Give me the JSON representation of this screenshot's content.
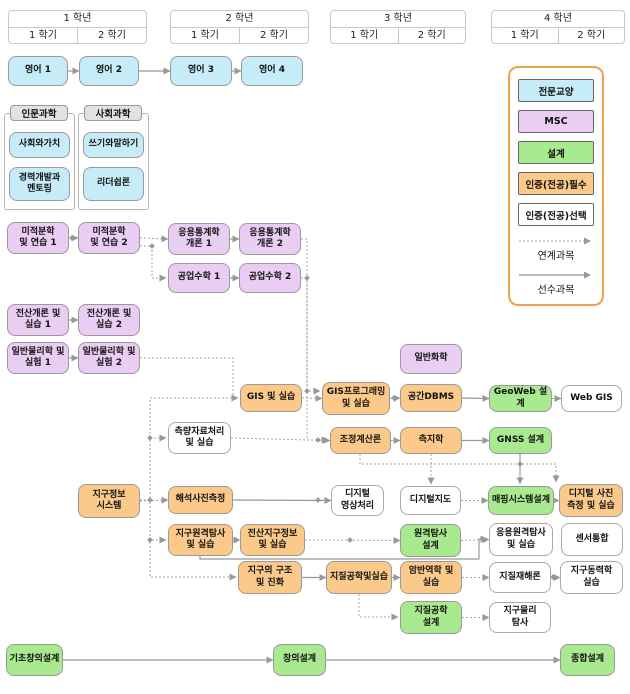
{
  "header": {
    "years": [
      {
        "label": "1 학년",
        "semesters": [
          "1 학기",
          "2 학기"
        ]
      },
      {
        "label": "2 학년",
        "semesters": [
          "1 학기",
          "2 학기"
        ]
      },
      {
        "label": "3 학년",
        "semesters": [
          "1 학기",
          "2 학기"
        ]
      },
      {
        "label": "4 학년",
        "semesters": [
          "1 학기",
          "2 학기"
        ]
      }
    ]
  },
  "groups": [
    {
      "label": "인문과학"
    },
    {
      "label": "사회과학"
    }
  ],
  "legend": {
    "items": [
      {
        "label": "전문교양",
        "type": "liberal"
      },
      {
        "label": "MSC",
        "type": "msc"
      },
      {
        "label": "설계",
        "type": "design"
      },
      {
        "label": "인증(전공)필수",
        "type": "required"
      },
      {
        "label": "인증(전공)선택",
        "type": "elective"
      }
    ],
    "linked_label": "연계과목",
    "prereq_label": "선수과목"
  },
  "colors": {
    "liberal": "#c6edf7",
    "msc": "#eacdf2",
    "design": "#a9e98f",
    "required": "#fbca8b",
    "elective": "#ffffff",
    "legend_border": "#f2a24c",
    "arrow": "#999999"
  },
  "nodes": [
    {
      "id": "eng1",
      "label": "영어 1",
      "type": "liberal"
    },
    {
      "id": "eng2",
      "label": "영어 2",
      "type": "liberal"
    },
    {
      "id": "eng3",
      "label": "영어 3",
      "type": "liberal"
    },
    {
      "id": "eng4",
      "label": "영어 4",
      "type": "liberal"
    },
    {
      "id": "hum1",
      "label": "사회와가치",
      "type": "liberal"
    },
    {
      "id": "hum2",
      "label": "경력개발과\n멘토링",
      "type": "liberal"
    },
    {
      "id": "soc1",
      "label": "쓰기와말하기",
      "type": "liberal"
    },
    {
      "id": "soc2",
      "label": "리더쉽론",
      "type": "liberal"
    },
    {
      "id": "calc1",
      "label": "미적분학\n및 연습 1",
      "type": "msc"
    },
    {
      "id": "calc2",
      "label": "미적분학\n및 연습 2",
      "type": "msc"
    },
    {
      "id": "stat1",
      "label": "응용통계학\n개론 1",
      "type": "msc"
    },
    {
      "id": "stat2",
      "label": "응용통계학\n개론 2",
      "type": "msc"
    },
    {
      "id": "math1",
      "label": "공업수학 1",
      "type": "msc"
    },
    {
      "id": "math2",
      "label": "공업수학 2",
      "type": "msc"
    },
    {
      "id": "comp1",
      "label": "전산개론 및\n실습 1",
      "type": "msc"
    },
    {
      "id": "comp2",
      "label": "전산개론 및\n실습 2",
      "type": "msc"
    },
    {
      "id": "phys1",
      "label": "일반물리학 및\n실험 1",
      "type": "msc"
    },
    {
      "id": "phys2",
      "label": "일반물리학 및\n실험 2",
      "type": "msc"
    },
    {
      "id": "chem",
      "label": "일반화학",
      "type": "msc"
    },
    {
      "id": "gis",
      "label": "GIS 및 실습",
      "type": "required"
    },
    {
      "id": "gisprog",
      "label": "GIS프로그래밍\n및 실습",
      "type": "required"
    },
    {
      "id": "dbms",
      "label": "공간DBMS",
      "type": "required"
    },
    {
      "id": "geoweb",
      "label": "GeoWeb 설계",
      "type": "design"
    },
    {
      "id": "webgis",
      "label": "Web GIS",
      "type": "elective"
    },
    {
      "id": "survey",
      "label": "측량자료처리\n및 실습",
      "type": "elective"
    },
    {
      "id": "adjust",
      "label": "조정계산론",
      "type": "required"
    },
    {
      "id": "geodesy",
      "label": "측지학",
      "type": "required"
    },
    {
      "id": "gnss",
      "label": "GNSS 설계",
      "type": "design"
    },
    {
      "id": "geoinfo",
      "label": "지구정보\n시스템",
      "type": "required"
    },
    {
      "id": "photo",
      "label": "해석사진측정",
      "type": "required"
    },
    {
      "id": "dimg",
      "label": "디지털\n영상처리",
      "type": "elective"
    },
    {
      "id": "dmap",
      "label": "디지털지도",
      "type": "elective"
    },
    {
      "id": "mapsys",
      "label": "매핑시스템설계",
      "type": "design"
    },
    {
      "id": "dphoto",
      "label": "디지털 사진\n측정 및 실습",
      "type": "required"
    },
    {
      "id": "ers",
      "label": "지구원격탐사\n및 실습",
      "type": "required"
    },
    {
      "id": "cgi",
      "label": "전산지구정보\n및 실습",
      "type": "required"
    },
    {
      "id": "rsd",
      "label": "원격탐사\n설계",
      "type": "design"
    },
    {
      "id": "aers",
      "label": "응용원격탐사\n및 실습",
      "type": "elective"
    },
    {
      "id": "sensor",
      "label": "센서통합",
      "type": "elective"
    },
    {
      "id": "earth",
      "label": "지구의 구조\n및 진화",
      "type": "required"
    },
    {
      "id": "geoeng",
      "label": "지질공학및실습",
      "type": "required"
    },
    {
      "id": "rock",
      "label": "암반역학 및\n실습",
      "type": "required"
    },
    {
      "id": "hazard",
      "label": "지질재해론",
      "type": "elective"
    },
    {
      "id": "geodyn",
      "label": "지구동력학\n실습",
      "type": "elective"
    },
    {
      "id": "gdesign",
      "label": "지질공학\n설계",
      "type": "design"
    },
    {
      "id": "geophys",
      "label": "지구물리\n탐사",
      "type": "elective"
    },
    {
      "id": "basic",
      "label": "기초창의설계",
      "type": "design"
    },
    {
      "id": "creative",
      "label": "창의설계",
      "type": "design"
    },
    {
      "id": "final",
      "label": "종합설계",
      "type": "design"
    }
  ],
  "edges": [
    {
      "from": "eng1",
      "to": "eng2",
      "type": "prereq"
    },
    {
      "from": "eng2",
      "to": "eng3",
      "type": "prereq"
    },
    {
      "from": "eng3",
      "to": "eng4",
      "type": "prereq"
    },
    {
      "from": "calc1",
      "to": "calc2",
      "type": "prereq"
    },
    {
      "from": "stat1",
      "to": "stat2",
      "type": "prereq"
    },
    {
      "from": "math1",
      "to": "math2",
      "type": "prereq"
    },
    {
      "from": "comp1",
      "to": "comp2",
      "type": "prereq"
    },
    {
      "from": "phys1",
      "to": "phys2",
      "type": "prereq"
    },
    {
      "from": "dbms",
      "to": "geoweb",
      "type": "prereq"
    },
    {
      "from": "geodesy",
      "to": "gnss",
      "type": "prereq"
    },
    {
      "from": "photo",
      "to": "dimg",
      "type": "prereq"
    },
    {
      "from": "gnss",
      "to": "mapsys",
      "type": "prereq"
    },
    {
      "from": "earth",
      "to": "geoeng",
      "type": "prereq"
    },
    {
      "from": "geoeng",
      "to": "rock",
      "type": "prereq"
    },
    {
      "from": "ers",
      "to": "aers",
      "type": "prereq"
    },
    {
      "from": "basic",
      "to": "creative",
      "type": "prereq"
    },
    {
      "from": "creative",
      "to": "final",
      "type": "prereq"
    },
    {
      "from": "calc2",
      "to": "stat1",
      "type": "linked"
    },
    {
      "from": "calc2",
      "to": "math1",
      "type": "linked"
    },
    {
      "from": "stat2",
      "to": "gisprog",
      "type": "linked"
    },
    {
      "from": "math2",
      "to": "adjust",
      "type": "linked"
    },
    {
      "from": "phys2",
      "to": "gis",
      "type": "linked"
    },
    {
      "from": "geoinfo",
      "to": "gis",
      "type": "linked"
    },
    {
      "from": "gis",
      "to": "gisprog",
      "type": "linked"
    },
    {
      "from": "gisprog",
      "to": "dbms",
      "type": "linked"
    },
    {
      "from": "geoweb",
      "to": "webgis",
      "type": "linked"
    },
    {
      "from": "geoinfo",
      "to": "survey",
      "type": "linked"
    },
    {
      "from": "geoinfo",
      "to": "photo",
      "type": "linked"
    },
    {
      "from": "geoinfo",
      "to": "ers",
      "type": "linked"
    },
    {
      "from": "geoinfo",
      "to": "earth",
      "type": "linked"
    },
    {
      "from": "survey",
      "to": "adjust",
      "type": "linked"
    },
    {
      "from": "adjust",
      "to": "geodesy",
      "type": "linked"
    },
    {
      "from": "geodesy",
      "to": "dmap",
      "type": "linked"
    },
    {
      "from": "adjust",
      "to": "dphoto",
      "type": "linked"
    },
    {
      "from": "dmap",
      "to": "mapsys",
      "type": "linked"
    },
    {
      "from": "mapsys",
      "to": "dphoto",
      "type": "linked"
    },
    {
      "from": "ers",
      "to": "cgi",
      "type": "linked"
    },
    {
      "from": "cgi",
      "to": "rsd",
      "type": "linked"
    },
    {
      "from": "rsd",
      "to": "aers",
      "type": "linked"
    },
    {
      "from": "rock",
      "to": "hazard",
      "type": "linked"
    },
    {
      "from": "hazard",
      "to": "geodyn",
      "type": "linked"
    },
    {
      "from": "geoeng",
      "to": "gdesign",
      "type": "linked"
    },
    {
      "from": "gdesign",
      "to": "geophys",
      "type": "linked"
    }
  ]
}
